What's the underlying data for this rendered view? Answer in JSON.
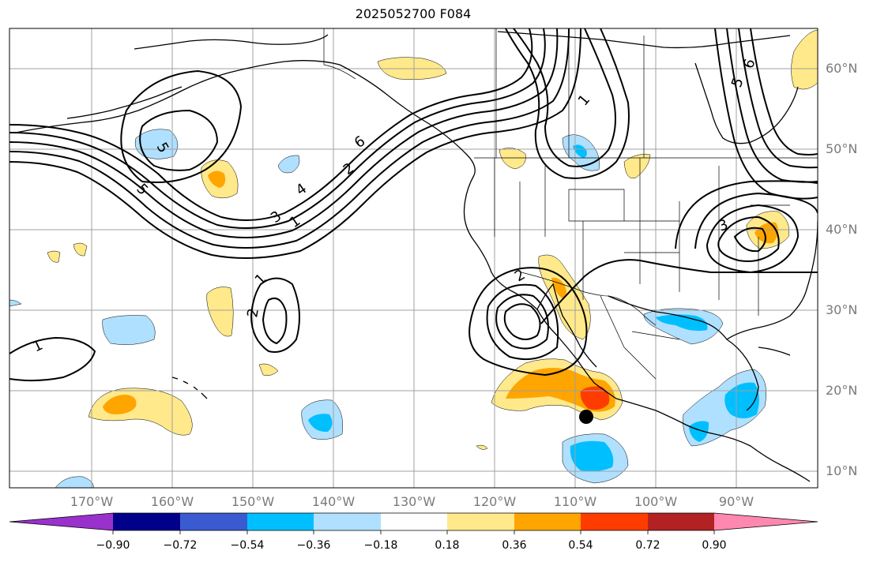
{
  "title": "2025052700 F084",
  "lat_labels": [
    "60°N",
    "50°N",
    "40°N",
    "30°N",
    "20°N",
    "10°N"
  ],
  "lon_labels": [
    "170°W",
    "160°W",
    "150°W",
    "140°W",
    "130°W",
    "120°W",
    "110°W",
    "100°W",
    "90°W"
  ],
  "colorbar": {
    "ticks": [
      "−0.90",
      "−0.72",
      "−0.54",
      "−0.36",
      "−0.18",
      "0.18",
      "0.36",
      "0.54",
      "0.72",
      "0.90"
    ],
    "colors": [
      "#9932cc",
      "#00008b",
      "#3a5bd0",
      "#00bfff",
      "#b0e0ff",
      "#ffffff",
      "#ffe98a",
      "#ffa500",
      "#ff3c00",
      "#b22222",
      "#ff88b0"
    ]
  },
  "contour_labels": [
    "1",
    "2",
    "3",
    "4",
    "5",
    "6"
  ],
  "colors": {
    "neg_light": "#b0e0ff",
    "neg_mid": "#00bfff",
    "pos_light": "#ffe98a",
    "pos_mid": "#ffa500",
    "pos_high": "#ff3c00"
  }
}
